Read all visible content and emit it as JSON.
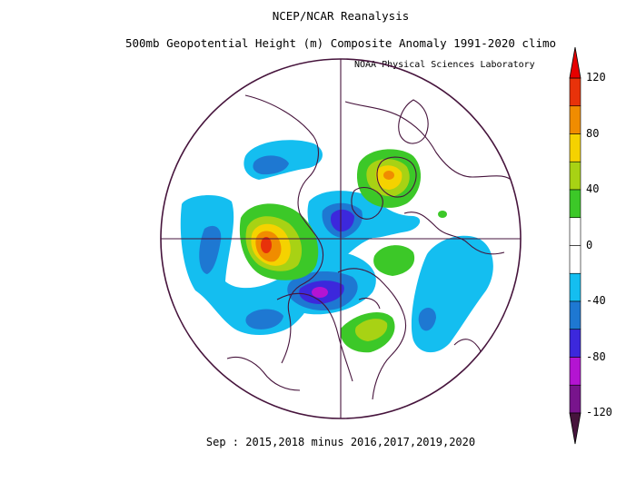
{
  "header": {
    "title_line1": "NCEP/NCAR Reanalysis",
    "title_line2": "500mb Geopotential Height (m) Composite Anomaly 1991-2020 climo",
    "credit": "NOAA Physical Sciences Laboratory"
  },
  "caption": "Sep : 2015,2018 minus 2016,2017,2019,2020",
  "colorbar": {
    "units": "m",
    "tick_labels": [
      "120",
      "80",
      "40",
      "0",
      "-40",
      "-80",
      "-120"
    ],
    "tick_values": [
      120,
      80,
      40,
      0,
      -40,
      -80,
      -120
    ],
    "bins": [
      {
        "from": 100,
        "to": 120,
        "color": "#e8320a"
      },
      {
        "from": 80,
        "to": 100,
        "color": "#f08c00"
      },
      {
        "from": 60,
        "to": 80,
        "color": "#f5d200"
      },
      {
        "from": 40,
        "to": 60,
        "color": "#a8d214"
      },
      {
        "from": 20,
        "to": 40,
        "color": "#3cc828"
      },
      {
        "from": 0,
        "to": 20,
        "color": "#ffffff"
      },
      {
        "from": -20,
        "to": 0,
        "color": "#ffffff"
      },
      {
        "from": -40,
        "to": -20,
        "color": "#14bef0"
      },
      {
        "from": -60,
        "to": -40,
        "color": "#1e78d2"
      },
      {
        "from": -80,
        "to": -60,
        "color": "#3c28dc"
      },
      {
        "from": -100,
        "to": -80,
        "color": "#b414d2"
      },
      {
        "from": -120,
        "to": -100,
        "color": "#78148c"
      }
    ],
    "top_arrow_color": "#e60000",
    "bottom_arrow_color": "#46143c"
  },
  "map": {
    "projection": "north-polar-stereographic",
    "land_outline_color": "#46143c"
  }
}
